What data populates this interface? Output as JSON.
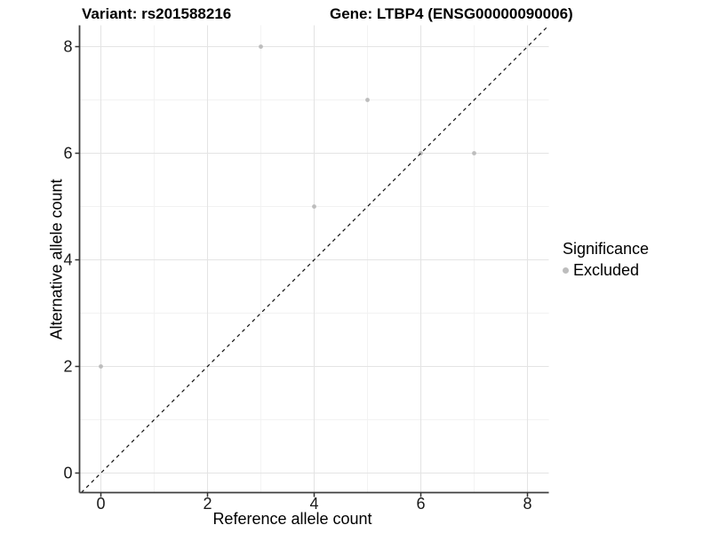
{
  "header": {
    "variant_title": "Variant: rs201588216",
    "gene_title": "Gene: LTBP4 (ENSG00000090006)"
  },
  "chart_data": {
    "type": "scatter",
    "title": "Variant: rs201588216    Gene: LTBP4 (ENSG00000090006)",
    "xlabel": "Reference allele count",
    "ylabel": "Alternative allele count",
    "xlim": [
      -0.4,
      8.4
    ],
    "ylim": [
      -0.4,
      8.4
    ],
    "x_ticks": [
      0,
      2,
      4,
      6,
      8
    ],
    "y_ticks": [
      0,
      2,
      4,
      6,
      8
    ],
    "minor_gridlines_x": [
      1,
      3,
      5,
      7
    ],
    "minor_gridlines_y": [
      1,
      3,
      5,
      7
    ],
    "grid": "on",
    "series": [
      {
        "name": "Excluded",
        "color": "#bdbdbd",
        "points": [
          {
            "x": 0,
            "y": 2
          },
          {
            "x": 3,
            "y": 8
          },
          {
            "x": 4,
            "y": 5
          },
          {
            "x": 5,
            "y": 7
          },
          {
            "x": 6,
            "y": 6
          },
          {
            "x": 7,
            "y": 6
          }
        ]
      }
    ],
    "reference_line": {
      "type": "identity",
      "slope": 1,
      "intercept": 0,
      "style": "dashed",
      "color": "#111111"
    },
    "legend": {
      "position": "right",
      "title": "Significance",
      "entries": [
        {
          "label": "Excluded",
          "color": "#bdbdbd"
        }
      ]
    },
    "colors": {
      "background": "#ffffff",
      "major_grid": "#e4e4e4",
      "minor_grid": "#f2f2f2",
      "axis_line": "#3f3f3f",
      "tick_mark": "#333333",
      "tick_label": "#1a1a1a",
      "point": "#bdbdbd"
    }
  }
}
